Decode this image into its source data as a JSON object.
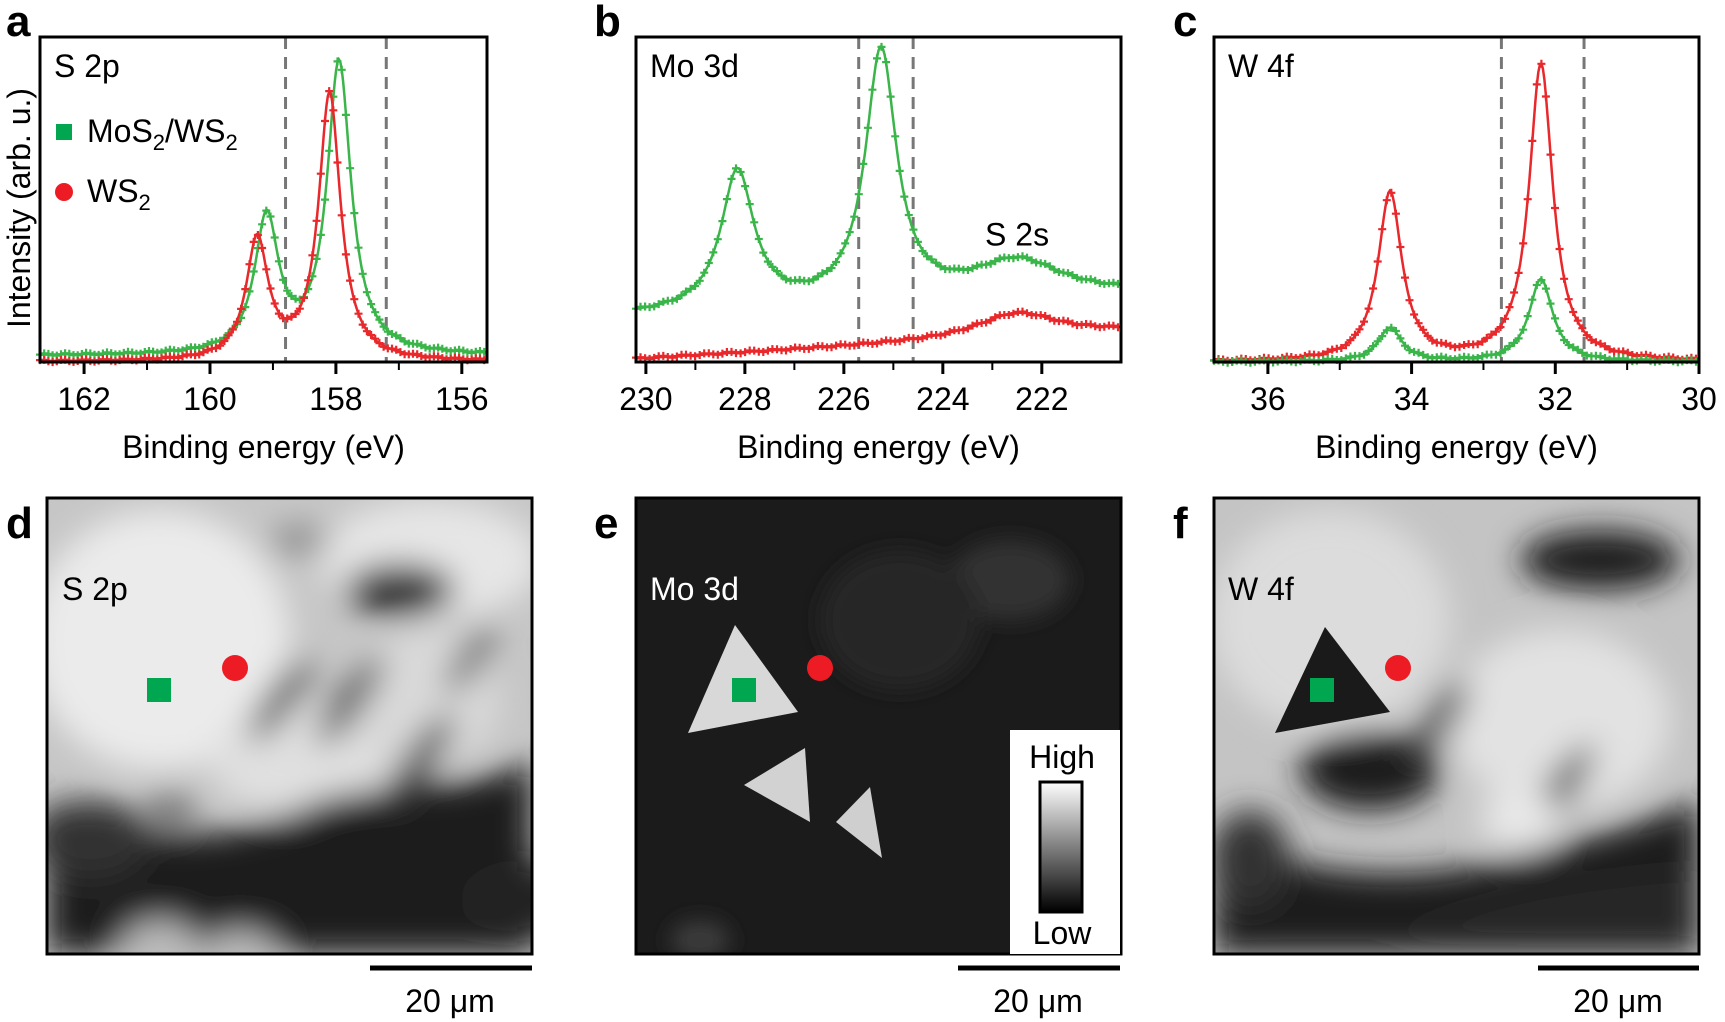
{
  "colors": {
    "green": "#3ab54a",
    "red": "#e8282b",
    "marker_green": "#00a650",
    "marker_red": "#ed1c24"
  },
  "panel_labels": [
    "a",
    "b",
    "c",
    "d",
    "e",
    "f"
  ],
  "chart_data": [
    {
      "type": "line",
      "panel": "a",
      "inset_label": "S 2p",
      "xlabel": "Binding energy (eV)",
      "ylabel": "Intensity (arb. u.)",
      "xlim": [
        162.7,
        155.6
      ],
      "ylim": [
        0,
        1.06
      ],
      "x_reversed": true,
      "xticks": [
        162,
        160,
        158,
        156
      ],
      "xtick_labels": [
        "162",
        "160",
        "158",
        "156"
      ],
      "dashed_lines": [
        158.8,
        157.2
      ],
      "legend": {
        "placement": "top-left",
        "entries": [
          {
            "label_main": "MoS",
            "sub1": "2",
            "label_mid": "/WS",
            "sub2": "2",
            "marker": "square",
            "color": "#00a650"
          },
          {
            "label_main": "WS",
            "sub1": "2",
            "label_mid": "",
            "sub2": "",
            "marker": "circle",
            "color": "#ed1c24"
          }
        ]
      },
      "series": [
        {
          "name": "MoS2/WS2",
          "color": "#3ab54a",
          "baseline": 0.02,
          "peaks": [
            {
              "center": 157.95,
              "height": 0.95,
              "width": 0.23
            },
            {
              "center": 159.1,
              "height": 0.44,
              "width": 0.23
            }
          ]
        },
        {
          "name": "WS2",
          "color": "#e8282b",
          "baseline": 0.0,
          "peaks": [
            {
              "center": 158.1,
              "height": 0.87,
              "width": 0.21
            },
            {
              "center": 159.25,
              "height": 0.39,
              "width": 0.21
            }
          ]
        }
      ]
    },
    {
      "type": "line",
      "panel": "b",
      "inset_label": "Mo 3d",
      "annotation": "S 2s",
      "xlabel": "Binding energy (eV)",
      "xlim": [
        230.2,
        220.4
      ],
      "ylim": [
        0,
        1.06
      ],
      "x_reversed": true,
      "xticks": [
        230,
        228,
        226,
        224,
        222
      ],
      "xtick_labels": [
        "230",
        "228",
        "226",
        "224",
        "222"
      ],
      "dashed_lines": [
        225.7,
        224.6
      ],
      "series": [
        {
          "name": "MoS2/WS2",
          "color": "#3ab54a",
          "baseline_start": 0.15,
          "baseline_end": 0.22,
          "peaks": [
            {
              "center": 225.25,
              "height": 0.82,
              "width": 0.38
            },
            {
              "center": 228.15,
              "height": 0.45,
              "width": 0.4
            },
            {
              "center": 222.5,
              "height": 0.12,
              "width": 1.1
            }
          ]
        },
        {
          "name": "WS2",
          "color": "#e8282b",
          "baseline_start": 0.01,
          "baseline_end": 0.1,
          "peaks": [
            {
              "center": 222.5,
              "height": 0.08,
              "width": 1.0
            }
          ]
        }
      ]
    },
    {
      "type": "line",
      "panel": "c",
      "inset_label": "W 4f",
      "xlabel": "Binding energy (eV)",
      "xlim": [
        36.75,
        30.0
      ],
      "ylim": [
        0,
        1.06
      ],
      "x_reversed": true,
      "xticks": [
        36,
        34,
        32,
        30
      ],
      "xtick_labels": [
        "36",
        "34",
        "32",
        "30"
      ],
      "dashed_lines": [
        32.75,
        31.6
      ],
      "series": [
        {
          "name": "WS2",
          "color": "#e8282b",
          "baseline": 0.0,
          "peaks": [
            {
              "center": 32.2,
              "height": 0.97,
              "width": 0.2
            },
            {
              "center": 34.3,
              "height": 0.55,
              "width": 0.2
            }
          ]
        },
        {
          "name": "MoS2/WS2",
          "color": "#3ab54a",
          "baseline": 0.0,
          "peaks": [
            {
              "center": 32.2,
              "height": 0.27,
              "width": 0.2
            },
            {
              "center": 34.3,
              "height": 0.11,
              "width": 0.2
            }
          ]
        }
      ]
    }
  ],
  "maps": [
    {
      "panel": "d",
      "inset_label": "S 2p",
      "scalebar_label": "20 μm"
    },
    {
      "panel": "e",
      "inset_label": "Mo 3d",
      "scalebar_label": "20 μm",
      "colorbar": {
        "high": "High",
        "low": "Low"
      }
    },
    {
      "panel": "f",
      "inset_label": "W 4f",
      "scalebar_label": "20 μm"
    }
  ]
}
